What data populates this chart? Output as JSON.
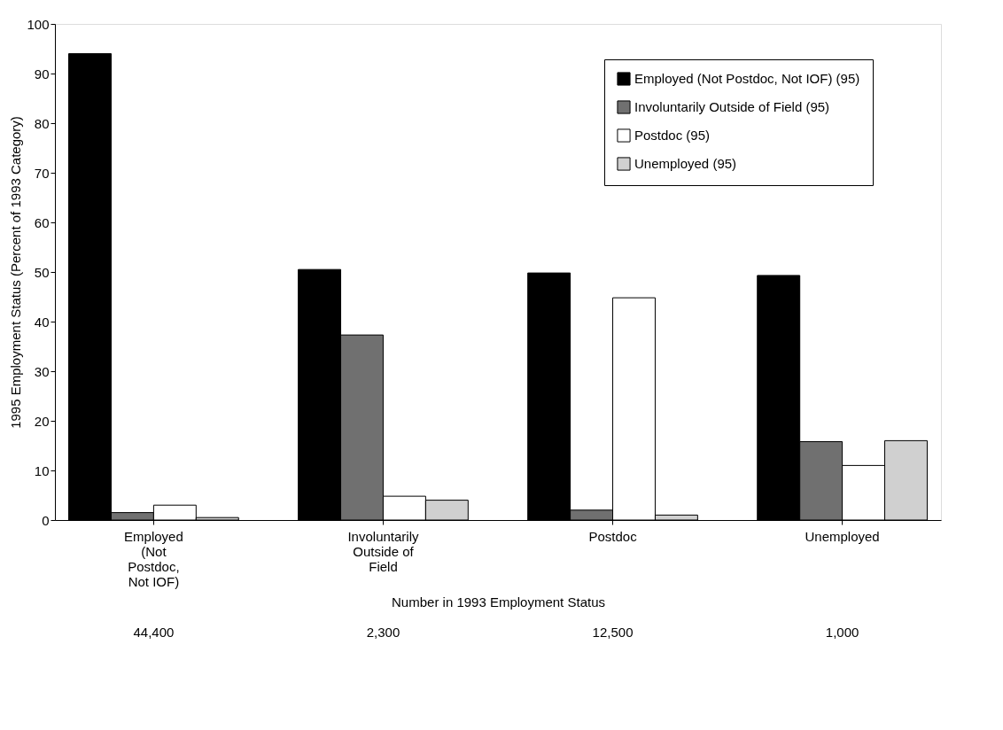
{
  "chart_data": {
    "type": "bar",
    "ylabel": "1995 Employment Status (Percent of 1993 Category)",
    "xlabel": "Number in 1993 Employment Status",
    "categories": [
      "Employed (Not Postdoc, Not IOF)",
      "Involuntarily Outside of Field",
      "Postdoc",
      "Unemployed"
    ],
    "series": [
      {
        "name": "Employed (Not Postdoc, Not IOF) (95)",
        "color": "#000000",
        "values": [
          94,
          50.5,
          49.8,
          49.3
        ]
      },
      {
        "name": "Involuntarily Outside of Field (95)",
        "color": "#707070",
        "values": [
          1.5,
          37.3,
          2,
          15.8
        ]
      },
      {
        "name": "Postdoc (95)",
        "color": "#ffffff",
        "values": [
          3,
          4.8,
          44.8,
          11
        ]
      },
      {
        "name": "Unemployed (95)",
        "color": "#d0d0d0",
        "values": [
          0.5,
          4,
          1,
          16
        ]
      }
    ],
    "annotations": [
      "44,400",
      "2,300",
      "12,500",
      "1,000"
    ],
    "ylim": [
      0,
      100
    ],
    "yticks": [
      0,
      10,
      20,
      30,
      40,
      50,
      60,
      70,
      80,
      90,
      100
    ],
    "grid": false,
    "legend": "top right"
  }
}
